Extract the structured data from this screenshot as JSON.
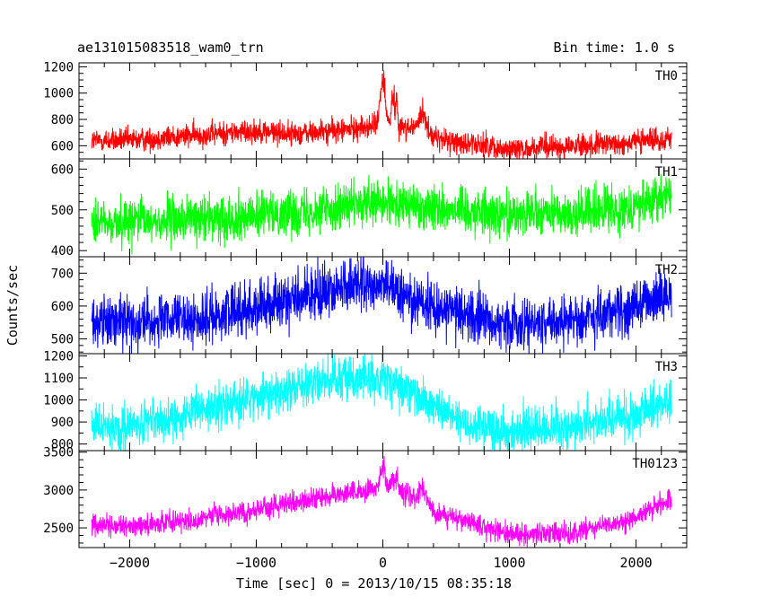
{
  "header": {
    "title": "ae131015083518_wam0_trn",
    "bin_time": "Bin time: 1.0 s"
  },
  "chart_data": {
    "type": "line",
    "title": "ae131015083518_wam0_trn",
    "subtitle": "Bin time: 1.0 s",
    "xlabel": "Time [sec] 0 = 2013/10/15 08:35:18",
    "ylabel": "Counts/sec",
    "xlim": [
      -2400,
      2400
    ],
    "x_ticks": [
      -2000,
      -1000,
      0,
      1000,
      2000
    ],
    "x_tick_labels": [
      "−2000",
      "−1000",
      "0",
      "1000",
      "2000"
    ],
    "x_range_data": [
      -2300,
      2280
    ],
    "grid": false,
    "panels": [
      {
        "name": "TH0",
        "color": "#ff0000",
        "ylim": [
          500,
          1230
        ],
        "y_ticks": [
          600,
          800,
          1000,
          1200
        ],
        "y_tick_labels": [
          "600",
          "800",
          "1000",
          "1200"
        ],
        "noise": 45,
        "envelope": [
          [
            -2300,
            640
          ],
          [
            -2000,
            640
          ],
          [
            -1000,
            715
          ],
          [
            -700,
            690
          ],
          [
            -300,
            720
          ],
          [
            0,
            760
          ],
          [
            150,
            740
          ],
          [
            300,
            730
          ],
          [
            400,
            660
          ],
          [
            700,
            610
          ],
          [
            1000,
            580
          ],
          [
            1500,
            590
          ],
          [
            2000,
            630
          ],
          [
            2280,
            660
          ]
        ],
        "spikes": [
          [
            0,
            20,
            420
          ],
          [
            80,
            12,
            300
          ],
          [
            110,
            8,
            260
          ],
          [
            320,
            30,
            150
          ]
        ]
      },
      {
        "name": "TH1",
        "color": "#00ff00",
        "ylim": [
          385,
          625
        ],
        "y_ticks": [
          400,
          500,
          600
        ],
        "y_tick_labels": [
          "400",
          "500",
          "600"
        ],
        "noise": 28,
        "envelope": [
          [
            -2300,
            465
          ],
          [
            -2000,
            470
          ],
          [
            -1000,
            485
          ],
          [
            -300,
            510
          ],
          [
            0,
            515
          ],
          [
            500,
            505
          ],
          [
            1000,
            490
          ],
          [
            1500,
            490
          ],
          [
            2000,
            510
          ],
          [
            2280,
            540
          ]
        ],
        "spikes": []
      },
      {
        "name": "TH2",
        "color": "#0000ff",
        "ylim": [
          455,
          750
        ],
        "y_ticks": [
          500,
          600,
          700
        ],
        "y_tick_labels": [
          "500",
          "600",
          "700"
        ],
        "noise": 40,
        "envelope": [
          [
            -2300,
            555
          ],
          [
            -1500,
            555
          ],
          [
            -1000,
            600
          ],
          [
            -500,
            640
          ],
          [
            -200,
            665
          ],
          [
            0,
            660
          ],
          [
            400,
            600
          ],
          [
            800,
            560
          ],
          [
            1000,
            545
          ],
          [
            1500,
            560
          ],
          [
            2000,
            600
          ],
          [
            2280,
            640
          ]
        ],
        "spikes": []
      },
      {
        "name": "TH3",
        "color": "#00ffff",
        "ylim": [
          770,
          1210
        ],
        "y_ticks": [
          800,
          900,
          1000,
          1100,
          1200
        ],
        "y_tick_labels": [
          "800",
          "900",
          "1000",
          "1100",
          "1200"
        ],
        "noise": 50,
        "envelope": [
          [
            -2300,
            880
          ],
          [
            -2000,
            880
          ],
          [
            -1500,
            940
          ],
          [
            -1000,
            1010
          ],
          [
            -500,
            1080
          ],
          [
            -200,
            1110
          ],
          [
            0,
            1100
          ],
          [
            300,
            1000
          ],
          [
            700,
            890
          ],
          [
            1000,
            860
          ],
          [
            1500,
            880
          ],
          [
            2000,
            930
          ],
          [
            2280,
            1010
          ]
        ],
        "spikes": []
      },
      {
        "name": "TH0123",
        "color": "#ff00ff",
        "ylim": [
          2240,
          3520
        ],
        "y_ticks": [
          2500,
          3000,
          3500
        ],
        "y_tick_labels": [
          "2500",
          "3000",
          "3500"
        ],
        "noise": 70,
        "envelope": [
          [
            -2300,
            2530
          ],
          [
            -2000,
            2530
          ],
          [
            -1500,
            2600
          ],
          [
            -1000,
            2740
          ],
          [
            -500,
            2900
          ],
          [
            -100,
            3010
          ],
          [
            0,
            3000
          ],
          [
            150,
            2980
          ],
          [
            300,
            2870
          ],
          [
            400,
            2720
          ],
          [
            700,
            2550
          ],
          [
            1000,
            2420
          ],
          [
            1500,
            2420
          ],
          [
            2000,
            2640
          ],
          [
            2280,
            2880
          ]
        ],
        "spikes": [
          [
            0,
            20,
            400
          ],
          [
            80,
            12,
            280
          ],
          [
            110,
            8,
            240
          ],
          [
            320,
            30,
            180
          ]
        ]
      }
    ]
  }
}
